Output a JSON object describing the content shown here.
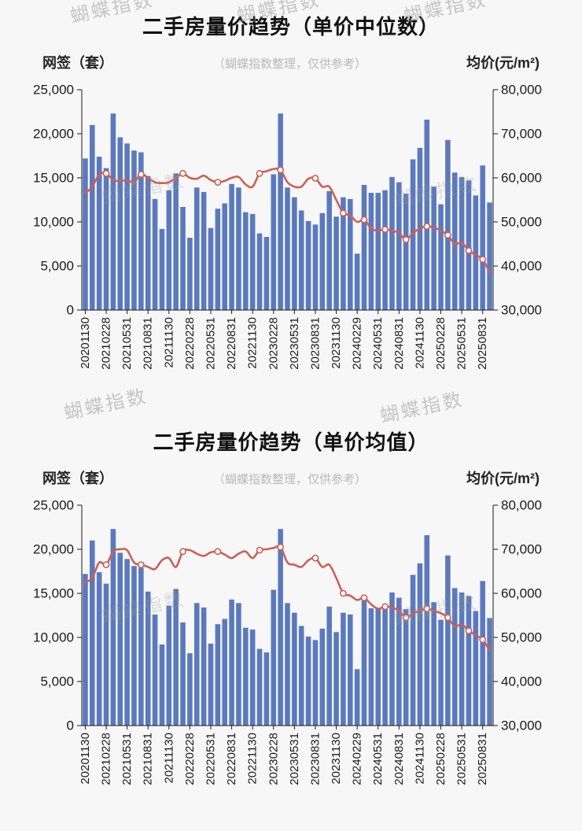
{
  "watermark": {
    "text": "蝴蝶指数"
  },
  "colors": {
    "bar": "#5b79bd",
    "line": "#cd6056",
    "marker_fill": "#ffffff",
    "axis": "#1a1a1a",
    "text": "#1a1a1a",
    "title": "#111111",
    "subtitle": "#b9b9b9",
    "watermark": "#9c9c9c",
    "background": "#f7f7f8"
  },
  "chart_data": [
    {
      "type": "bar",
      "title": "二手房量价趋势（单价中位数）",
      "subtitle": "（蝴蝶指数整理，仅供参考）",
      "left_axis": {
        "title": "网签（套）",
        "min": 0,
        "max": 25000,
        "step": 5000
      },
      "right_axis": {
        "title": "均价(元/m²)",
        "min": 30000,
        "max": 80000,
        "step": 10000
      },
      "label_every": 3,
      "legend_position": "none",
      "grid": false,
      "categories": [
        "20201130",
        "20201231",
        "20210131",
        "20210228",
        "20210331",
        "20210430",
        "20210531",
        "20210630",
        "20210731",
        "20210831",
        "20210930",
        "20211031",
        "20211130",
        "20211231",
        "20220131",
        "20220228",
        "20220331",
        "20220430",
        "20220531",
        "20220630",
        "20220731",
        "20220831",
        "20220930",
        "20221031",
        "20221130",
        "20221231",
        "20230131",
        "20230228",
        "20230331",
        "20230430",
        "20230531",
        "20230630",
        "20230731",
        "20230831",
        "20230930",
        "20231031",
        "20231130",
        "20231231",
        "20240131",
        "20240229",
        "20240331",
        "20240430",
        "20240531",
        "20240630",
        "20240731",
        "20240831",
        "20240930",
        "20241031",
        "20241130",
        "20241231",
        "20250131",
        "20250228",
        "20250331",
        "20250430",
        "20250531",
        "20250630",
        "20250731",
        "20250831",
        "20250930"
      ],
      "series": [
        {
          "name": "网签（套）",
          "type": "bar",
          "axis": "left",
          "values": [
            17200,
            21000,
            17400,
            16100,
            22300,
            19600,
            18900,
            18100,
            17900,
            15200,
            12600,
            9200,
            13600,
            15500,
            11700,
            8200,
            13900,
            13400,
            9300,
            11500,
            12100,
            14300,
            13900,
            11100,
            10900,
            8700,
            8300,
            15400,
            22300,
            13900,
            12800,
            11300,
            10100,
            9700,
            11000,
            13500,
            10600,
            12800,
            12600,
            6400,
            14200,
            13300,
            13300,
            13600,
            15100,
            14500,
            13200,
            17100,
            18400,
            21600,
            14000,
            12000,
            19300,
            15600,
            15100,
            14700,
            13000,
            16400,
            12200
          ]
        },
        {
          "name": "单价中位数(元/m²)",
          "type": "line",
          "axis": "right",
          "values": [
            56500,
            58000,
            60800,
            61000,
            59500,
            59300,
            59500,
            59000,
            60800,
            60000,
            59000,
            58800,
            59000,
            60000,
            61000,
            60000,
            59800,
            60500,
            59500,
            59000,
            59300,
            60000,
            60200,
            58500,
            58000,
            61000,
            61500,
            62000,
            61800,
            59000,
            58000,
            58000,
            59800,
            59900,
            58000,
            58000,
            55000,
            52000,
            51500,
            50000,
            50500,
            48500,
            48000,
            48300,
            48000,
            47500,
            46000,
            47500,
            48500,
            49000,
            48700,
            48000,
            47000,
            45000,
            45300,
            43500,
            42500,
            41500,
            38500
          ]
        }
      ],
      "marker_indices": [
        3,
        8,
        14,
        19,
        25,
        28,
        33,
        37,
        40,
        43,
        46,
        49,
        52,
        55,
        57
      ]
    },
    {
      "type": "bar",
      "title": "二手房量价趋势（单价均值）",
      "subtitle": "（蝴蝶指数整理，仅供参考）",
      "left_axis": {
        "title": "网签（套）",
        "min": 0,
        "max": 25000,
        "step": 5000
      },
      "right_axis": {
        "title": "均价(元/m²)",
        "min": 30000,
        "max": 80000,
        "step": 10000
      },
      "label_every": 3,
      "legend_position": "none",
      "grid": false,
      "categories": [
        "20201130",
        "20201231",
        "20210131",
        "20210228",
        "20210331",
        "20210430",
        "20210531",
        "20210630",
        "20210731",
        "20210831",
        "20210930",
        "20211031",
        "20211130",
        "20211231",
        "20220131",
        "20220228",
        "20220331",
        "20220430",
        "20220531",
        "20220630",
        "20220731",
        "20220831",
        "20220930",
        "20221031",
        "20221130",
        "20221231",
        "20230131",
        "20230228",
        "20230331",
        "20230430",
        "20230531",
        "20230630",
        "20230731",
        "20230831",
        "20230930",
        "20231031",
        "20231130",
        "20231231",
        "20240131",
        "20240229",
        "20240331",
        "20240430",
        "20240531",
        "20240630",
        "20240731",
        "20240831",
        "20240930",
        "20241031",
        "20241130",
        "20241231",
        "20250131",
        "20250228",
        "20250331",
        "20250430",
        "20250531",
        "20250630",
        "20250731",
        "20250831",
        "20250930"
      ],
      "series": [
        {
          "name": "网签（套）",
          "type": "bar",
          "axis": "left",
          "values": [
            17200,
            21000,
            17400,
            16100,
            22300,
            19600,
            18900,
            18100,
            17900,
            15200,
            12600,
            9200,
            13600,
            15500,
            11700,
            8200,
            13900,
            13400,
            9300,
            11500,
            12100,
            14300,
            13900,
            11100,
            10900,
            8700,
            8300,
            15400,
            22300,
            13900,
            12800,
            11300,
            10100,
            9700,
            11000,
            13500,
            10600,
            12800,
            12600,
            6400,
            14200,
            13300,
            13300,
            13600,
            15100,
            14500,
            13200,
            17100,
            18400,
            21600,
            14000,
            12000,
            19300,
            15600,
            15100,
            14700,
            13000,
            16400,
            12200
          ]
        },
        {
          "name": "单价均值(元/m²)",
          "type": "line",
          "axis": "right",
          "values": [
            62500,
            63500,
            67000,
            66500,
            69500,
            70000,
            69800,
            67000,
            66500,
            66000,
            65500,
            67500,
            68000,
            66000,
            69500,
            69800,
            69000,
            68500,
            69300,
            69500,
            68800,
            68000,
            69000,
            69500,
            68000,
            69800,
            70000,
            70300,
            70500,
            67000,
            66500,
            66000,
            67500,
            68000,
            66000,
            66500,
            63500,
            60000,
            59500,
            58500,
            59000,
            57500,
            56500,
            57000,
            56800,
            56000,
            54500,
            55500,
            56000,
            56500,
            56000,
            55500,
            54500,
            52500,
            53000,
            51500,
            50500,
            49500,
            47000
          ]
        }
      ],
      "marker_indices": [
        3,
        8,
        14,
        19,
        25,
        28,
        33,
        37,
        40,
        43,
        46,
        49,
        52,
        55,
        57
      ]
    }
  ]
}
